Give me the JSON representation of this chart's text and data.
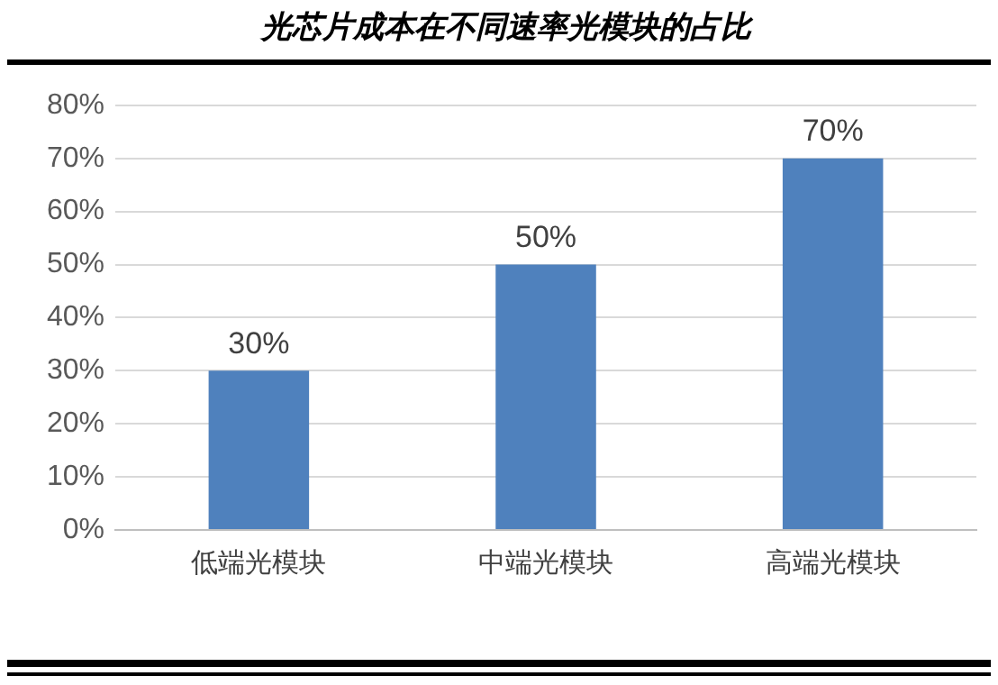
{
  "chart_data": {
    "type": "bar",
    "title": "光芯片成本在不同速率光模块的占比",
    "categories": [
      "低端光模块",
      "中端光模块",
      "高端光模块"
    ],
    "values": [
      30,
      50,
      70
    ],
    "color": "#4f81bd",
    "value_labels": [
      "30%",
      "50%",
      "70%"
    ],
    "ylim": [
      0,
      80
    ],
    "yticks": [
      {
        "value": 0,
        "label": "0%"
      },
      {
        "value": 10,
        "label": "10%"
      },
      {
        "value": 20,
        "label": "20%"
      },
      {
        "value": 30,
        "label": "30%"
      },
      {
        "value": 40,
        "label": "40%"
      },
      {
        "value": 50,
        "label": "50%"
      },
      {
        "value": 60,
        "label": "60%"
      },
      {
        "value": 70,
        "label": "70%"
      },
      {
        "value": 80,
        "label": "80%"
      }
    ],
    "grid": "y",
    "legend": false
  }
}
